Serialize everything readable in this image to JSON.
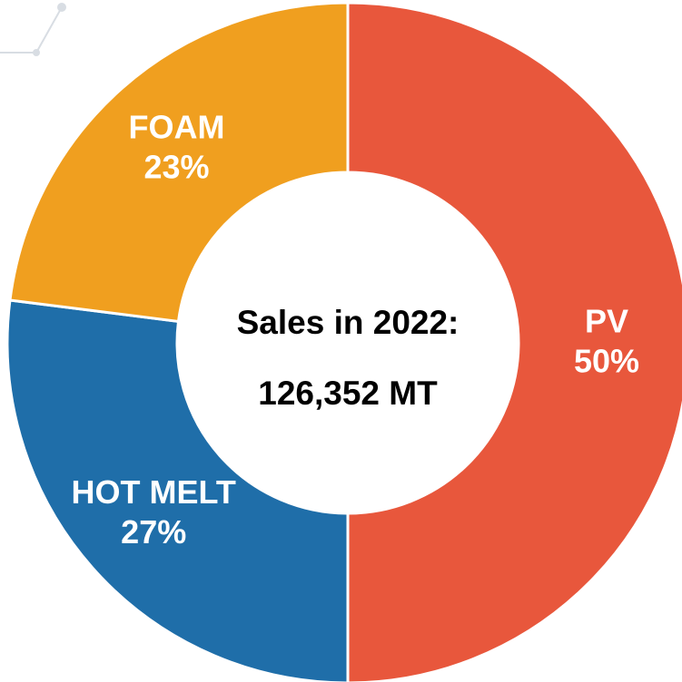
{
  "chart_data": {
    "type": "donut",
    "categories": [
      "PV",
      "HOT MELT",
      "FOAM"
    ],
    "values": [
      50,
      27,
      23
    ],
    "value_labels": [
      "50%",
      "27%",
      "23%"
    ],
    "colors": [
      "#e8573c",
      "#1f6ea9",
      "#f09f1f"
    ],
    "annotations": [
      "Sales in 2022:",
      "126,352 MT"
    ]
  }
}
